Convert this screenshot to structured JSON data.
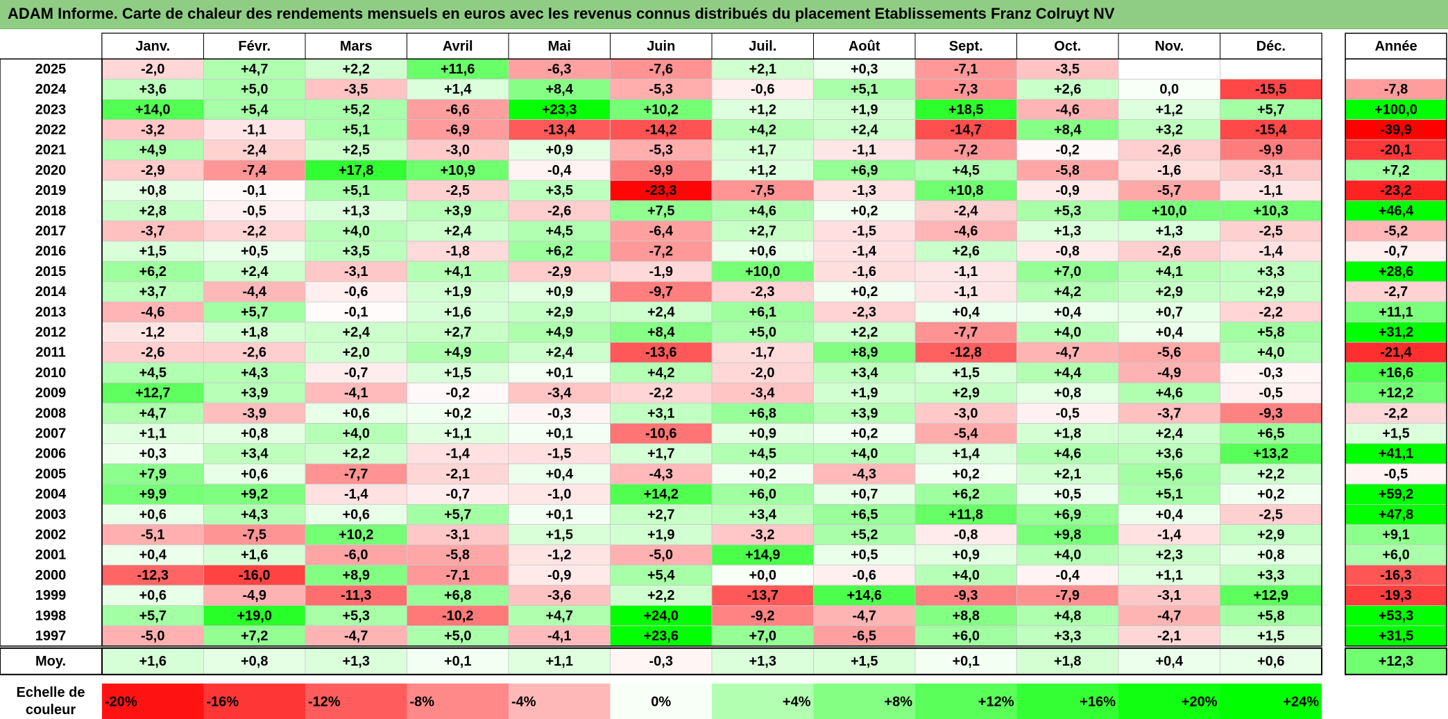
{
  "title": "ADAM Informe. Carte de chaleur des rendements mensuels en euros avec les revenus connus distribués du placement Etablissements Franz Colruyt NV",
  "chart_data": {
    "type": "heatmap",
    "columns": [
      "Janv.",
      "Févr.",
      "Mars",
      "Avril",
      "Mai",
      "Juin",
      "Juil.",
      "Août",
      "Sept.",
      "Oct.",
      "Nov.",
      "Déc."
    ],
    "year_header": "Année",
    "rows": [
      {
        "year": "2025",
        "values": [
          "-2,0",
          "+4,7",
          "+2,2",
          "+11,6",
          "-6,3",
          "-7,6",
          "+2,1",
          "+0,3",
          "-7,1",
          "-3,5",
          "",
          ""
        ],
        "annual": ""
      },
      {
        "year": "2024",
        "values": [
          "+3,6",
          "+5,0",
          "-3,5",
          "+1,4",
          "+8,4",
          "-5,3",
          "-0,6",
          "+5,1",
          "-7,3",
          "+2,6",
          "0,0",
          "-15,5"
        ],
        "annual": "-7,8"
      },
      {
        "year": "2023",
        "values": [
          "+14,0",
          "+5,4",
          "+5,2",
          "-6,6",
          "+23,3",
          "+10,2",
          "+1,2",
          "+1,9",
          "+18,5",
          "-4,6",
          "+1,2",
          "+5,7"
        ],
        "annual": "+100,0"
      },
      {
        "year": "2022",
        "values": [
          "-3,2",
          "-1,1",
          "+5,1",
          "-6,9",
          "-13,4",
          "-14,2",
          "+4,2",
          "+2,4",
          "-14,7",
          "+8,4",
          "+3,2",
          "-15,4"
        ],
        "annual": "-39,9"
      },
      {
        "year": "2021",
        "values": [
          "+4,9",
          "-2,4",
          "+2,5",
          "-3,0",
          "+0,9",
          "-5,3",
          "+1,7",
          "-1,1",
          "-7,2",
          "-0,2",
          "-2,6",
          "-9,9"
        ],
        "annual": "-20,1"
      },
      {
        "year": "2020",
        "values": [
          "-2,9",
          "-7,4",
          "+17,8",
          "+10,9",
          "-0,4",
          "-9,9",
          "+1,2",
          "+6,9",
          "+4,5",
          "-5,8",
          "-1,6",
          "-3,1"
        ],
        "annual": "+7,2"
      },
      {
        "year": "2019",
        "values": [
          "+0,8",
          "-0,1",
          "+5,1",
          "-2,5",
          "+3,5",
          "-23,3",
          "-7,5",
          "-1,3",
          "+10,8",
          "-0,9",
          "-5,7",
          "-1,1"
        ],
        "annual": "-23,2"
      },
      {
        "year": "2018",
        "values": [
          "+2,8",
          "-0,5",
          "+1,3",
          "+3,9",
          "-2,6",
          "+7,5",
          "+4,6",
          "+0,2",
          "-2,4",
          "+5,3",
          "+10,0",
          "+10,3"
        ],
        "annual": "+46,4"
      },
      {
        "year": "2017",
        "values": [
          "-3,7",
          "-2,2",
          "+4,0",
          "+2,4",
          "+4,5",
          "-6,4",
          "+2,7",
          "-1,5",
          "-4,6",
          "+1,3",
          "+1,3",
          "-2,5"
        ],
        "annual": "-5,2"
      },
      {
        "year": "2016",
        "values": [
          "+1,5",
          "+0,5",
          "+3,5",
          "-1,8",
          "+6,2",
          "-7,2",
          "+0,6",
          "-1,4",
          "+2,6",
          "-0,8",
          "-2,6",
          "-1,4"
        ],
        "annual": "-0,7"
      },
      {
        "year": "2015",
        "values": [
          "+6,2",
          "+2,4",
          "-3,1",
          "+4,1",
          "-2,9",
          "-1,9",
          "+10,0",
          "-1,6",
          "-1,1",
          "+7,0",
          "+4,1",
          "+3,3"
        ],
        "annual": "+28,6"
      },
      {
        "year": "2014",
        "values": [
          "+3,7",
          "-4,4",
          "-0,6",
          "+1,9",
          "+0,9",
          "-9,7",
          "-2,3",
          "+0,2",
          "-1,1",
          "+4,2",
          "+2,9",
          "+2,9"
        ],
        "annual": "-2,7"
      },
      {
        "year": "2013",
        "values": [
          "-4,6",
          "+5,7",
          "-0,1",
          "+1,6",
          "+2,9",
          "+2,4",
          "+6,1",
          "-2,3",
          "+0,4",
          "+0,4",
          "+0,7",
          "-2,2"
        ],
        "annual": "+11,1"
      },
      {
        "year": "2012",
        "values": [
          "-1,2",
          "+1,8",
          "+2,4",
          "+2,7",
          "+4,9",
          "+8,4",
          "+5,0",
          "+2,2",
          "-7,7",
          "+4,0",
          "+0,4",
          "+5,8"
        ],
        "annual": "+31,2"
      },
      {
        "year": "2011",
        "values": [
          "-2,6",
          "-2,6",
          "+2,0",
          "+4,9",
          "+2,4",
          "-13,6",
          "-1,7",
          "+8,9",
          "-12,8",
          "-4,7",
          "-5,6",
          "+4,0"
        ],
        "annual": "-21,4"
      },
      {
        "year": "2010",
        "values": [
          "+4,5",
          "+4,3",
          "-0,7",
          "+1,5",
          "+0,1",
          "+4,2",
          "-2,0",
          "+3,4",
          "+1,5",
          "+4,4",
          "-4,9",
          "-0,3"
        ],
        "annual": "+16,6"
      },
      {
        "year": "2009",
        "values": [
          "+12,7",
          "+3,9",
          "-4,1",
          "-0,2",
          "-3,4",
          "-2,2",
          "-3,4",
          "+1,9",
          "+2,9",
          "+0,8",
          "+4,6",
          "-0,5"
        ],
        "annual": "+12,2"
      },
      {
        "year": "2008",
        "values": [
          "+4,7",
          "-3,9",
          "+0,6",
          "+0,2",
          "-0,3",
          "+3,1",
          "+6,8",
          "+3,9",
          "-3,0",
          "-0,5",
          "-3,7",
          "-9,3"
        ],
        "annual": "-2,2"
      },
      {
        "year": "2007",
        "values": [
          "+1,1",
          "+0,8",
          "+4,0",
          "+1,1",
          "+0,1",
          "-10,6",
          "+0,9",
          "+0,2",
          "-5,4",
          "+1,8",
          "+2,4",
          "+6,5"
        ],
        "annual": "+1,5"
      },
      {
        "year": "2006",
        "values": [
          "+0,3",
          "+3,4",
          "+2,2",
          "-1,4",
          "-1,5",
          "+1,7",
          "+4,5",
          "+4,0",
          "+1,4",
          "+4,6",
          "+3,6",
          "+13,2"
        ],
        "annual": "+41,1"
      },
      {
        "year": "2005",
        "values": [
          "+7,9",
          "+0,6",
          "-7,7",
          "-2,1",
          "+0,4",
          "-4,3",
          "+0,2",
          "-4,3",
          "+0,2",
          "+2,1",
          "+5,6",
          "+2,2"
        ],
        "annual": "-0,5"
      },
      {
        "year": "2004",
        "values": [
          "+9,9",
          "+9,2",
          "-1,4",
          "-0,7",
          "-1,0",
          "+14,2",
          "+6,0",
          "+0,7",
          "+6,2",
          "+0,5",
          "+5,1",
          "+0,2"
        ],
        "annual": "+59,2"
      },
      {
        "year": "2003",
        "values": [
          "+0,6",
          "+4,3",
          "+0,6",
          "+5,7",
          "+0,1",
          "+2,7",
          "+3,4",
          "+6,5",
          "+11,8",
          "+6,9",
          "+0,4",
          "-2,5"
        ],
        "annual": "+47,8"
      },
      {
        "year": "2002",
        "values": [
          "-5,1",
          "-7,5",
          "+10,2",
          "-3,1",
          "+1,5",
          "+1,9",
          "-3,2",
          "+5,2",
          "-0,8",
          "+9,8",
          "-1,4",
          "+2,9"
        ],
        "annual": "+9,1"
      },
      {
        "year": "2001",
        "values": [
          "+0,4",
          "+1,6",
          "-6,0",
          "-5,8",
          "-1,2",
          "-5,0",
          "+14,9",
          "+0,5",
          "+0,9",
          "+4,0",
          "+2,3",
          "+0,8"
        ],
        "annual": "+6,0"
      },
      {
        "year": "2000",
        "values": [
          "-12,3",
          "-16,0",
          "+8,9",
          "-7,1",
          "-0,9",
          "+5,4",
          "+0,0",
          "-0,6",
          "+4,0",
          "-0,4",
          "+1,1",
          "+3,3"
        ],
        "annual": "-16,3"
      },
      {
        "year": "1999",
        "values": [
          "+0,6",
          "-4,9",
          "-11,3",
          "+6,8",
          "-3,6",
          "+2,2",
          "-13,7",
          "+14,6",
          "-9,3",
          "-7,9",
          "-3,1",
          "+12,9"
        ],
        "annual": "-19,3"
      },
      {
        "year": "1998",
        "values": [
          "+5,7",
          "+19,0",
          "+5,3",
          "-10,2",
          "+4,7",
          "+24,0",
          "-9,2",
          "-4,7",
          "+8,8",
          "+4,8",
          "-4,7",
          "+5,8"
        ],
        "annual": "+53,3"
      },
      {
        "year": "1997",
        "values": [
          "-5,0",
          "+7,2",
          "-4,7",
          "+5,0",
          "-4,1",
          "+23,6",
          "+7,0",
          "-6,5",
          "+6,0",
          "+3,3",
          "-2,1",
          "+1,5"
        ],
        "annual": "+31,5"
      }
    ],
    "average": {
      "label": "Moy.",
      "values": [
        "+1,6",
        "+0,8",
        "+1,3",
        "+0,1",
        "+1,1",
        "-0,3",
        "+1,3",
        "+1,5",
        "+0,1",
        "+1,8",
        "+0,4",
        "+0,6"
      ],
      "annual": "+12,3"
    },
    "scale": {
      "label_lines": [
        "Echelle de",
        "couleur"
      ],
      "labels": [
        "-20%",
        "-16%",
        "-12%",
        "-8%",
        "-4%",
        "0%",
        "+4%",
        "+8%",
        "+12%",
        "+16%",
        "+20%",
        "+24%"
      ],
      "values": [
        -20,
        -16,
        -12,
        -8,
        -4,
        0,
        4,
        8,
        12,
        16,
        20,
        24
      ]
    },
    "colors": {
      "negative_max": "#ff0000",
      "positive_max": "#00ff00",
      "neutral": "#ffffff",
      "title_bg": "#8fcd84"
    }
  }
}
